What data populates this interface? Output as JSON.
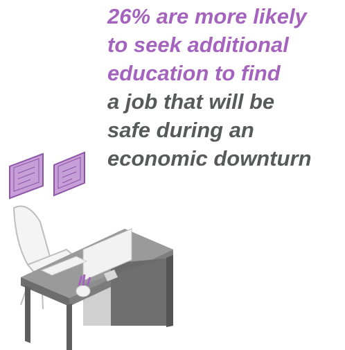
{
  "headline": {
    "highlight_lines": [
      "26% are more likely",
      "to seek additional",
      "education to find"
    ],
    "lines": [
      "a job that will be",
      "safe during an",
      "economic downturn"
    ],
    "highlight_color": "#a463bd",
    "color": "#58595b"
  }
}
